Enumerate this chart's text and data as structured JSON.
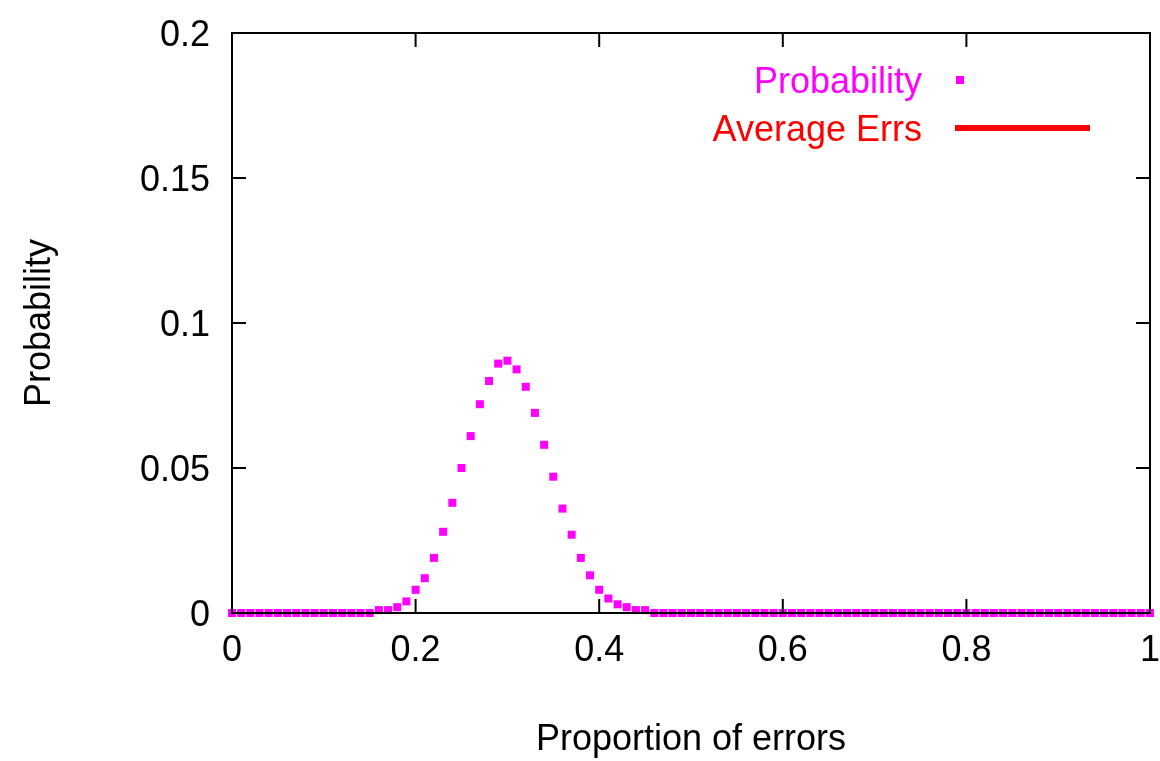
{
  "chart_data": {
    "type": "scatter",
    "xlabel": "Proportion of errors",
    "ylabel": "Probability",
    "xlim": [
      0,
      1
    ],
    "ylim": [
      0,
      0.2
    ],
    "xticks": [
      0,
      0.2,
      0.4,
      0.6,
      0.8,
      1
    ],
    "yticks": [
      0,
      0.05,
      0.1,
      0.15,
      0.2
    ],
    "legend": "top right",
    "marker": "square",
    "grid": false,
    "x": [
      0,
      0.01,
      0.02,
      0.03,
      0.04,
      0.05,
      0.06,
      0.07,
      0.08,
      0.09,
      0.1,
      0.11,
      0.12,
      0.13,
      0.14,
      0.15,
      0.16,
      0.17,
      0.18,
      0.19,
      0.2,
      0.21,
      0.22,
      0.23,
      0.24,
      0.25,
      0.26,
      0.27,
      0.28,
      0.29,
      0.3,
      0.31,
      0.32,
      0.33,
      0.34,
      0.35,
      0.36,
      0.37,
      0.38,
      0.39,
      0.4,
      0.41,
      0.42,
      0.43,
      0.44,
      0.45,
      0.46,
      0.47,
      0.48,
      0.49,
      0.5,
      0.51,
      0.52,
      0.53,
      0.54,
      0.55,
      0.56,
      0.57,
      0.58,
      0.59,
      0.6,
      0.61,
      0.62,
      0.63,
      0.64,
      0.65,
      0.66,
      0.67,
      0.68,
      0.69,
      0.7,
      0.71,
      0.72,
      0.73,
      0.74,
      0.75,
      0.76,
      0.77,
      0.78,
      0.79,
      0.8,
      0.81,
      0.82,
      0.83,
      0.84,
      0.85,
      0.86,
      0.87,
      0.88,
      0.89,
      0.9,
      0.91,
      0.92,
      0.93,
      0.94,
      0.95,
      0.96,
      0.97,
      0.98,
      0.99,
      1
    ],
    "series": [
      {
        "name": "Probability",
        "color": "#ff00ff",
        "values": [
          0,
          0,
          0,
          0,
          0,
          0,
          0,
          0,
          0,
          0,
          0,
          0,
          0,
          0,
          0,
          0,
          0.001,
          0.001,
          0.002,
          0.004,
          0.008,
          0.012,
          0.019,
          0.028,
          0.038,
          0.05,
          0.061,
          0.072,
          0.08,
          0.086,
          0.087,
          0.084,
          0.078,
          0.069,
          0.058,
          0.047,
          0.036,
          0.027,
          0.019,
          0.013,
          0.008,
          0.005,
          0.003,
          0.002,
          0.001,
          0.001,
          0,
          0,
          0,
          0,
          0,
          0,
          0,
          0,
          0,
          0,
          0,
          0,
          0,
          0,
          0,
          0,
          0,
          0,
          0,
          0,
          0,
          0,
          0,
          0,
          0,
          0,
          0,
          0,
          0,
          0,
          0,
          0,
          0,
          0,
          0,
          0,
          0,
          0,
          0,
          0,
          0,
          0,
          0,
          0,
          0,
          0,
          0,
          0,
          0,
          0,
          0,
          0,
          0,
          0,
          0
        ]
      },
      {
        "name": "Average Errs",
        "color": "#ff0000",
        "type": "line",
        "values": [
          null,
          null,
          null,
          null,
          null,
          null,
          null,
          null,
          null,
          null,
          null,
          null,
          null,
          null,
          null,
          null,
          null,
          null,
          null,
          null,
          null,
          null,
          null,
          null,
          null,
          null,
          null,
          null,
          null,
          null,
          null,
          null,
          null,
          null,
          null,
          null,
          null,
          null,
          null,
          null,
          null,
          null,
          null,
          null,
          null,
          null,
          null,
          null,
          null,
          null,
          null,
          null,
          null,
          null,
          null,
          null,
          null,
          null,
          null,
          null,
          null,
          null,
          null,
          null,
          null,
          null,
          null,
          null,
          null,
          null,
          null,
          null,
          null,
          null,
          null,
          null,
          null,
          null,
          null,
          null,
          null,
          null,
          null,
          null,
          null,
          null,
          null,
          null,
          null,
          null,
          null,
          null,
          null,
          null,
          null,
          null,
          null,
          null,
          null,
          null,
          null
        ]
      }
    ]
  }
}
